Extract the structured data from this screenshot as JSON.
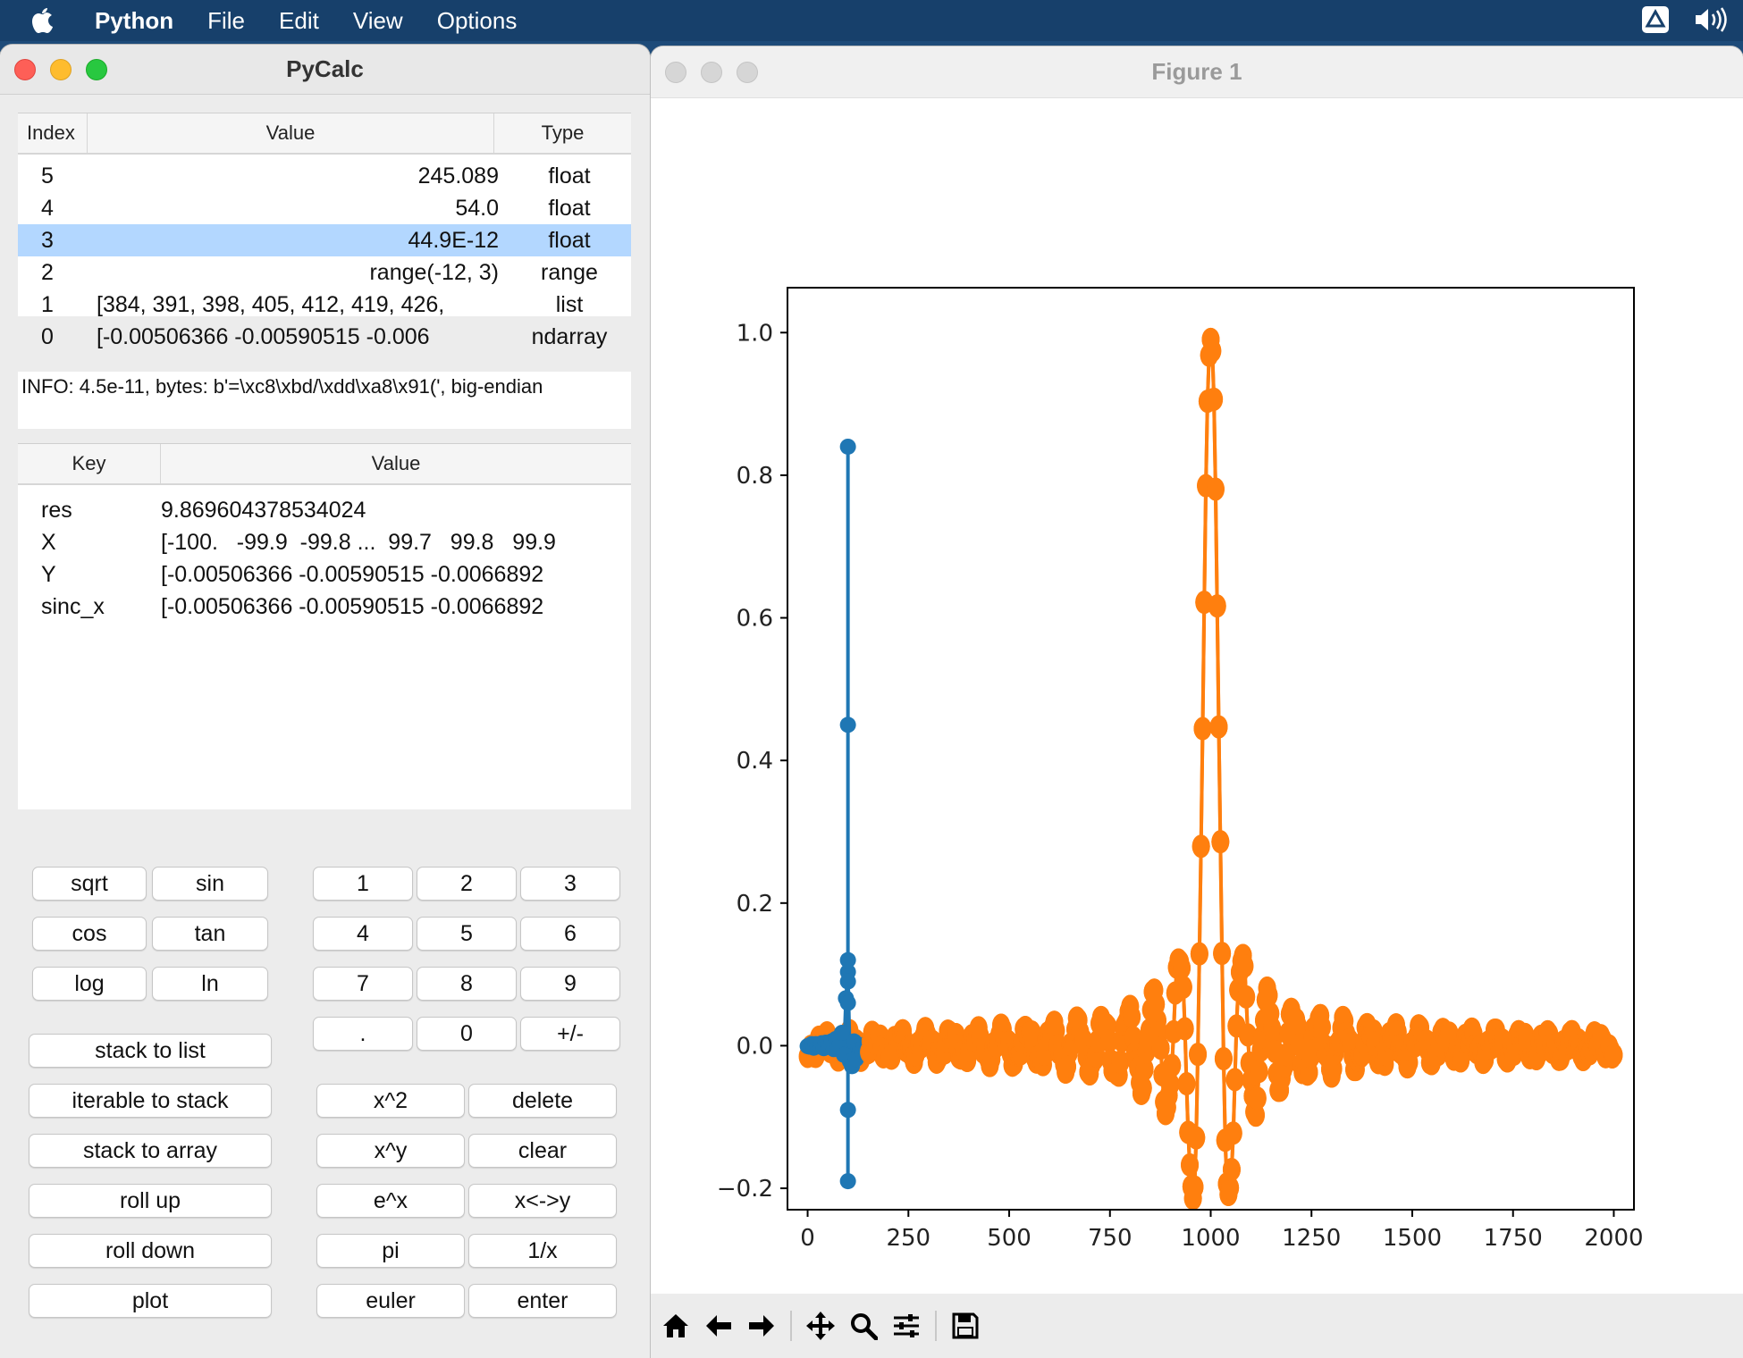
{
  "menubar": {
    "app_name": "Python",
    "items": [
      "File",
      "Edit",
      "View",
      "Options"
    ]
  },
  "pycalc": {
    "title": "PyCalc",
    "stack_headers": {
      "index": "Index",
      "value": "Value",
      "type": "Type"
    },
    "stack_rows": [
      {
        "index": "5",
        "value": "245.089",
        "type": "float"
      },
      {
        "index": "4",
        "value": "54.0",
        "type": "float"
      },
      {
        "index": "3",
        "value": "44.9E-12",
        "type": "float"
      },
      {
        "index": "2",
        "value": "range(-12, 3)",
        "type": "range"
      },
      {
        "index": "1",
        "value": "[384, 391, 398, 405, 412, 419, 426,",
        "type": "list"
      },
      {
        "index": "0",
        "value": "[-0.00506366 -0.00590515 -0.006",
        "type": "ndarray"
      }
    ],
    "info": "INFO: 4.5e-11, bytes: b'=\\xc8\\xbd/\\xdd\\xa8\\x91(', big-endian",
    "var_headers": {
      "key": "Key",
      "value": "Value"
    },
    "var_rows": [
      {
        "key": "res",
        "value": "9.869604378534024"
      },
      {
        "key": "X",
        "value": "[-100.   -99.9  -99.8 ...  99.7   99.8   99.9"
      },
      {
        "key": "Y",
        "value": "[-0.00506366 -0.00590515 -0.0066892"
      },
      {
        "key": "sinc_x",
        "value": "[-0.00506366 -0.00590515 -0.0066892"
      }
    ],
    "buttons": {
      "sqrt": "sqrt",
      "sin": "sin",
      "cos": "cos",
      "tan": "tan",
      "log": "log",
      "ln": "ln",
      "d1": "1",
      "d2": "2",
      "d3": "3",
      "d4": "4",
      "d5": "5",
      "d6": "6",
      "d7": "7",
      "d8": "8",
      "d9": "9",
      "dot": ".",
      "d0": "0",
      "plusminus": "+/-",
      "stack_to_list": "stack to list",
      "iterable_to_stack": "iterable to stack",
      "stack_to_array": "stack to array",
      "roll_up": "roll up",
      "roll_down": "roll down",
      "plot": "plot",
      "x2": "x^2",
      "delete": "delete",
      "xy": "x^y",
      "clear": "clear",
      "ex": "e^x",
      "swap": "x<->y",
      "pi": "pi",
      "inv": "1/x",
      "euler": "euler",
      "enter": "enter"
    }
  },
  "figure": {
    "title": "Figure 1",
    "colors": {
      "blue": "#1f77b4",
      "orange": "#ff7f0e"
    },
    "toolbar_icons": [
      "home-icon",
      "back-icon",
      "forward-icon",
      "pan-icon",
      "zoom-icon",
      "configure-icon",
      "save-icon"
    ]
  },
  "chart_data": {
    "type": "line",
    "xlim": [
      -50,
      2050
    ],
    "ylim": [
      -0.23,
      1.063
    ],
    "xticks": [
      0,
      250,
      500,
      750,
      1000,
      1250,
      1500,
      1750,
      2000
    ],
    "xtick_labels": [
      "0",
      "250",
      "500",
      "750",
      "1000",
      "1250",
      "1500",
      "1750",
      "2000"
    ],
    "yticks": [
      -0.2,
      0.0,
      0.2,
      0.4,
      0.6,
      0.8,
      1.0
    ],
    "ytick_labels": [
      "−0.2",
      "0.0",
      "0.2",
      "0.4",
      "0.6",
      "0.8",
      "1.0"
    ],
    "series": [
      {
        "color": "#1f77b4",
        "marker": "o",
        "points": [
          [
            0,
            0.0
          ],
          [
            10,
            0.01
          ],
          [
            20,
            -0.01
          ],
          [
            30,
            0.015
          ],
          [
            40,
            -0.015
          ],
          [
            50,
            0.02
          ],
          [
            60,
            -0.025
          ],
          [
            70,
            0.035
          ],
          [
            80,
            -0.05
          ],
          [
            85,
            0.07
          ],
          [
            90,
            -0.09
          ],
          [
            95,
            0.12
          ],
          [
            100,
            0.84
          ],
          [
            100,
            0.45
          ],
          [
            100,
            -0.19
          ],
          [
            100,
            -0.09
          ],
          [
            105,
            0.12
          ],
          [
            110,
            -0.09
          ],
          [
            115,
            0.07
          ],
          [
            120,
            -0.05
          ],
          [
            130,
            0.035
          ],
          [
            140,
            -0.025
          ],
          [
            150,
            0.02
          ],
          [
            160,
            -0.015
          ],
          [
            170,
            0.015
          ],
          [
            180,
            -0.01
          ],
          [
            190,
            0.01
          ],
          [
            200,
            0.0
          ]
        ]
      },
      {
        "color": "#ff7f0e",
        "marker": "o",
        "points": [
          [
            0,
            -0.01
          ],
          [
            2000,
            -0.01
          ],
          [
            1000,
            1.0
          ],
          [
            955,
            -0.21
          ],
          [
            1045,
            -0.21
          ],
          [
            930,
            0.12
          ],
          [
            1075,
            0.12
          ]
        ]
      }
    ]
  }
}
